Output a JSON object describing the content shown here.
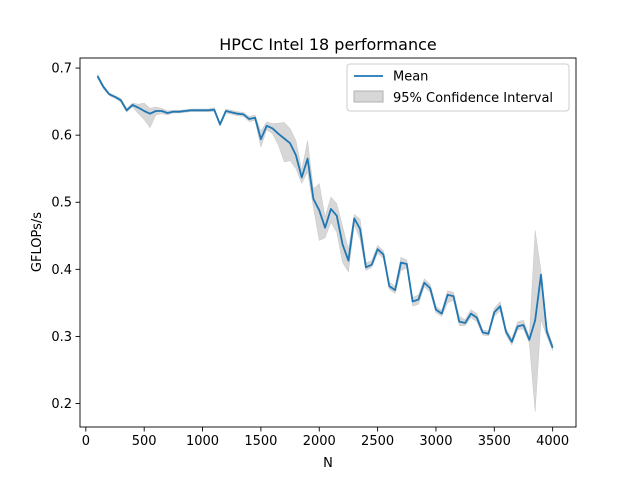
{
  "chart_data": {
    "type": "line",
    "title": "HPCC Intel 18 performance",
    "xlabel": "N",
    "ylabel": "GFLOPs/s",
    "xlim": [
      -50,
      4200
    ],
    "ylim": [
      0.165,
      0.715
    ],
    "xticks": [
      0,
      500,
      1000,
      1500,
      2000,
      2500,
      3000,
      3500,
      4000
    ],
    "yticks": [
      0.2,
      0.3,
      0.4,
      0.5,
      0.6,
      0.7
    ],
    "ytick_labels": [
      "0.2",
      "0.3",
      "0.4",
      "0.5",
      "0.6",
      "0.7"
    ],
    "grid": false,
    "legend_position": "top-right",
    "legend": {
      "mean_label": "Mean",
      "ci_label": "95% Confidence Interval"
    },
    "colors": {
      "mean": "#1f77b4",
      "ci": "#b0b0b0"
    },
    "x": [
      100,
      150,
      200,
      250,
      300,
      350,
      400,
      450,
      500,
      550,
      600,
      650,
      700,
      750,
      800,
      850,
      900,
      950,
      1000,
      1050,
      1100,
      1150,
      1200,
      1250,
      1300,
      1350,
      1400,
      1450,
      1500,
      1550,
      1600,
      1650,
      1700,
      1750,
      1800,
      1850,
      1900,
      1950,
      2000,
      2050,
      2100,
      2150,
      2200,
      2250,
      2300,
      2350,
      2400,
      2450,
      2500,
      2550,
      2600,
      2650,
      2700,
      2750,
      2800,
      2850,
      2900,
      2950,
      3000,
      3050,
      3100,
      3150,
      3200,
      3250,
      3300,
      3350,
      3400,
      3450,
      3500,
      3550,
      3600,
      3650,
      3700,
      3750,
      3800,
      3850,
      3900,
      3950,
      4000
    ],
    "series": [
      {
        "name": "Mean",
        "values": [
          0.688,
          0.672,
          0.661,
          0.657,
          0.652,
          0.637,
          0.645,
          0.641,
          0.636,
          0.632,
          0.636,
          0.636,
          0.633,
          0.635,
          0.635,
          0.636,
          0.637,
          0.637,
          0.637,
          0.637,
          0.638,
          0.616,
          0.636,
          0.634,
          0.632,
          0.631,
          0.624,
          0.626,
          0.594,
          0.614,
          0.61,
          0.602,
          0.595,
          0.588,
          0.57,
          0.537,
          0.565,
          0.505,
          0.488,
          0.462,
          0.49,
          0.48,
          0.437,
          0.413,
          0.476,
          0.46,
          0.403,
          0.407,
          0.43,
          0.422,
          0.375,
          0.369,
          0.41,
          0.408,
          0.352,
          0.355,
          0.38,
          0.372,
          0.34,
          0.334,
          0.362,
          0.36,
          0.322,
          0.32,
          0.334,
          0.328,
          0.306,
          0.304,
          0.336,
          0.345,
          0.307,
          0.292,
          0.315,
          0.317,
          0.295,
          0.324,
          0.392,
          0.307,
          0.283
        ]
      }
    ],
    "ci_lower": [
      0.685,
      0.669,
      0.659,
      0.655,
      0.649,
      0.634,
      0.642,
      0.632,
      0.623,
      0.611,
      0.63,
      0.632,
      0.63,
      0.633,
      0.633,
      0.634,
      0.635,
      0.635,
      0.635,
      0.635,
      0.635,
      0.613,
      0.633,
      0.631,
      0.629,
      0.628,
      0.62,
      0.622,
      0.582,
      0.608,
      0.602,
      0.585,
      0.56,
      0.562,
      0.55,
      0.528,
      0.545,
      0.492,
      0.443,
      0.447,
      0.47,
      0.455,
      0.41,
      0.396,
      0.466,
      0.445,
      0.398,
      0.403,
      0.424,
      0.416,
      0.37,
      0.364,
      0.398,
      0.402,
      0.345,
      0.348,
      0.374,
      0.366,
      0.335,
      0.33,
      0.35,
      0.354,
      0.316,
      0.316,
      0.328,
      0.322,
      0.302,
      0.301,
      0.33,
      0.338,
      0.302,
      0.287,
      0.31,
      0.311,
      0.29,
      0.188,
      0.325,
      0.3,
      0.279
    ],
    "ci_upper": [
      0.691,
      0.675,
      0.663,
      0.659,
      0.655,
      0.64,
      0.648,
      0.646,
      0.648,
      0.64,
      0.642,
      0.64,
      0.636,
      0.637,
      0.637,
      0.638,
      0.639,
      0.639,
      0.639,
      0.639,
      0.641,
      0.619,
      0.639,
      0.637,
      0.635,
      0.634,
      0.628,
      0.63,
      0.606,
      0.62,
      0.617,
      0.618,
      0.619,
      0.61,
      0.592,
      0.548,
      0.592,
      0.52,
      0.528,
      0.478,
      0.508,
      0.498,
      0.464,
      0.43,
      0.482,
      0.475,
      0.41,
      0.413,
      0.436,
      0.428,
      0.381,
      0.375,
      0.418,
      0.414,
      0.358,
      0.362,
      0.386,
      0.378,
      0.345,
      0.339,
      0.368,
      0.366,
      0.33,
      0.325,
      0.34,
      0.334,
      0.31,
      0.308,
      0.342,
      0.352,
      0.312,
      0.297,
      0.322,
      0.324,
      0.3,
      0.458,
      0.398,
      0.314,
      0.288
    ]
  }
}
